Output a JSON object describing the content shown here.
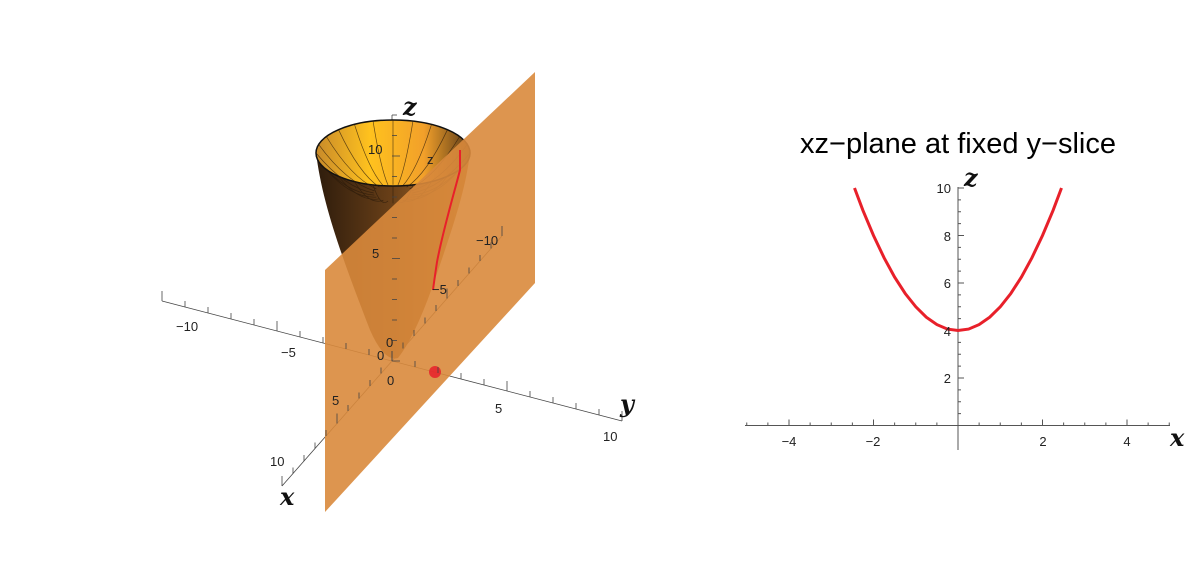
{
  "chart_data": [
    {
      "type": "surface3d",
      "axis_labels": {
        "x": "x",
        "y": "y",
        "z": "z"
      },
      "x_ticks": [
        "−10",
        "−5",
        "0",
        "5",
        "10"
      ],
      "y_ticks": [
        "−10",
        "−5",
        "0",
        "5",
        "10"
      ],
      "z_ticks": [
        "0",
        "5",
        "10"
      ],
      "inner_axis_label": "z",
      "xlim": [
        -10,
        10
      ],
      "ylim": [
        -10,
        10
      ],
      "zlim": [
        0,
        10
      ],
      "surface_color": "#f0a020",
      "plane_color": "#d98a3c",
      "slice_y": 2,
      "slice_point": {
        "x": 0,
        "y": 2,
        "z": 0
      },
      "curve_color": "#e8202a"
    },
    {
      "type": "line",
      "title": "xz−plane at fixed y−slice",
      "xlabel": "x",
      "ylabel": "z",
      "xlim": [
        -5,
        5
      ],
      "ylim": [
        0,
        10
      ],
      "x_ticks": [
        "−4",
        "−2",
        "2",
        "4"
      ],
      "y_ticks": [
        "2",
        "4",
        "6",
        "8",
        "10"
      ],
      "series": [
        {
          "color": "#e8202a",
          "x": [
            -2.45,
            -2.25,
            -2,
            -1.75,
            -1.5,
            -1.25,
            -1,
            -0.75,
            -0.5,
            -0.25,
            0,
            0.25,
            0.5,
            0.75,
            1,
            1.25,
            1.5,
            1.75,
            2,
            2.25,
            2.45
          ],
          "z": [
            10.0,
            9.06,
            8,
            7.06,
            6.25,
            5.56,
            5,
            4.56,
            4.25,
            4.06,
            4,
            4.06,
            4.25,
            4.56,
            5,
            5.56,
            6.25,
            7.06,
            8,
            9.06,
            10.0
          ]
        }
      ]
    }
  ]
}
